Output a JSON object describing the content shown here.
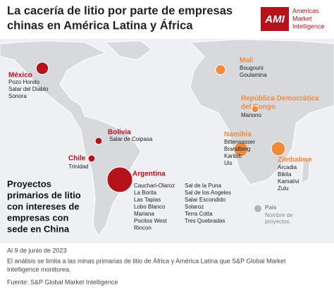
{
  "header": {
    "title": [
      "La cacería de litio por parte de empresas",
      "chinas en América Latina y África"
    ],
    "logo": {
      "mark": "AMI",
      "name": [
        "Americas",
        "Market",
        "Intelligence"
      ]
    }
  },
  "heading": [
    "Proyectos",
    "primarios de litio",
    "con intereses de",
    "empresas con",
    "sede en China"
  ],
  "countries": [
    {
      "name": [
        "México"
      ],
      "color": "#b5121b",
      "count": 3,
      "projects": [
        "Pozo Hondo",
        "Salar del Diablo",
        "Sonora"
      ]
    },
    {
      "name": [
        "Bolivia"
      ],
      "color": "#b5121b",
      "count": 1,
      "projects": [
        "Salar de Coipasa"
      ]
    },
    {
      "name": [
        "Chile"
      ],
      "color": "#b5121b",
      "count": 1,
      "projects": [
        "Trinidad"
      ]
    },
    {
      "name": [
        "Argentina"
      ],
      "color": "#b5121b",
      "count": 13,
      "projects": [
        "Cauchari-Olaroz",
        "La Borita",
        "Las Tapias",
        "Lobo Blanco",
        "Mariana",
        "Pocitos West",
        "Rincon",
        "Sal de la Puna",
        "Sal de los Angeles",
        "Salar Escondido",
        "Solaroz",
        "Terra Cotta",
        "Tres Quebradas"
      ]
    },
    {
      "name": [
        "Mali"
      ],
      "color": "#f08a3c",
      "count": 2,
      "projects": [
        "Bougouni",
        "Goulamina"
      ]
    },
    {
      "name": [
        "República Democrática",
        "del Congo"
      ],
      "color": "#f08a3c",
      "count": 1,
      "projects": [
        "Manono"
      ]
    },
    {
      "name": [
        "Namibia"
      ],
      "color": "#f08a3c",
      "count": 4,
      "projects": [
        "Bitterwasser",
        "Brandberg",
        "Karibib",
        "Uis"
      ]
    },
    {
      "name": [
        "Zimbabwe"
      ],
      "color": "#f08a3c",
      "count": 4,
      "projects": [
        "Arcadia",
        "Bikita",
        "Kamativi",
        "Zulu"
      ]
    }
  ],
  "legend": {
    "country": "País",
    "count": [
      "Nombre de",
      "proyectos"
    ]
  },
  "footer": {
    "date": "Al 9 de junio de 2023",
    "note": [
      "El análisis se limita a las minas primarias de litio de África y América Latina que S&P Global Market",
      "Intelligence monitorea."
    ],
    "source": "Fuente: S&P Global Market Intelligence"
  }
}
